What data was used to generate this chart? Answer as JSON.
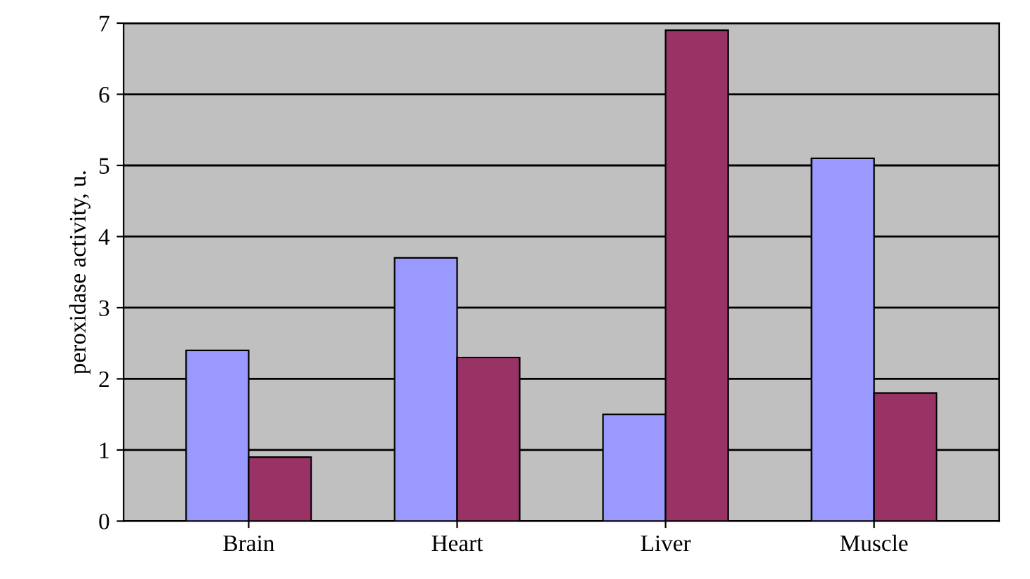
{
  "chart_data": {
    "type": "bar",
    "ylabel": "peroxidase activity, u.",
    "categories": [
      "Brain",
      "Heart",
      "Liver",
      "Muscle"
    ],
    "series": [
      {
        "color": "#9999ff",
        "values": [
          2.4,
          3.7,
          1.5,
          5.1
        ]
      },
      {
        "color": "#993366",
        "values": [
          0.9,
          2.3,
          6.9,
          1.8
        ]
      }
    ],
    "ylim": [
      0,
      7
    ],
    "yticks": [
      0,
      1,
      2,
      3,
      4,
      5,
      6,
      7
    ],
    "grid": "y"
  }
}
